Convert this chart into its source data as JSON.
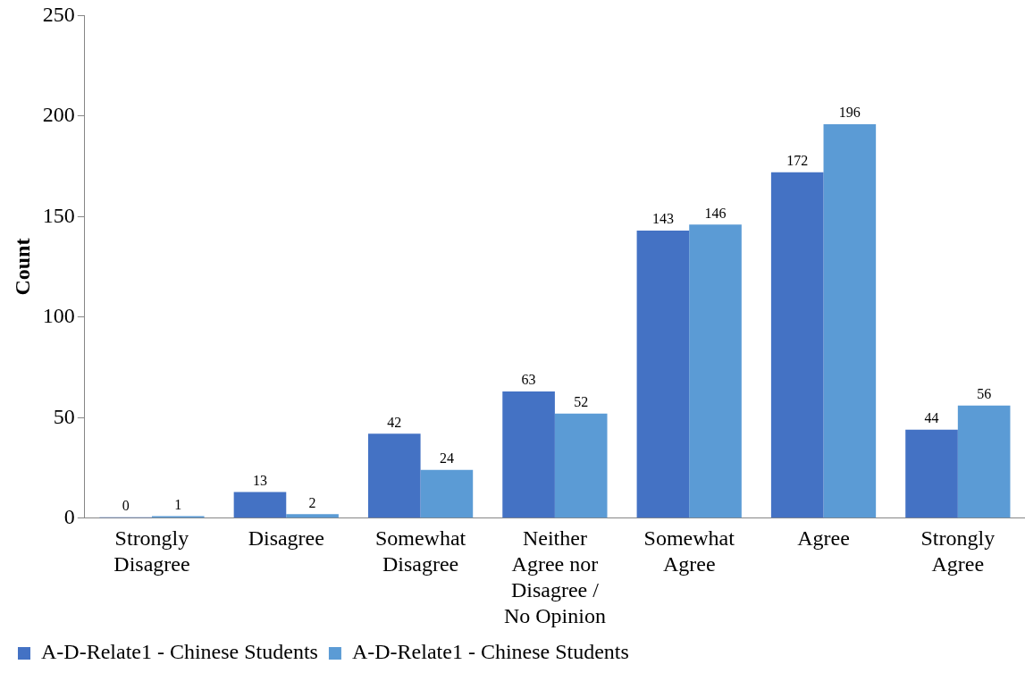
{
  "chart_data": {
    "type": "bar",
    "ylabel": "Count",
    "categories": [
      "Strongly Disagree",
      "Disagree",
      "Somewhat Disagree",
      "Neither Agree nor Disagree / No Opinion",
      "Somewhat Agree",
      "Agree",
      "Strongly Agree"
    ],
    "series": [
      {
        "name": "A-D-Relate1 - Chinese Students",
        "color": "#4472c4",
        "values": [
          0,
          13,
          42,
          63,
          143,
          172,
          44
        ]
      },
      {
        "name": "A-D-Relate1 - Chinese Students",
        "color": "#5b9bd5",
        "values": [
          1,
          2,
          24,
          52,
          146,
          196,
          56
        ]
      }
    ],
    "ylim": [
      0,
      250
    ],
    "yticks": [
      0,
      50,
      100,
      150,
      200,
      250
    ],
    "grid": false,
    "legend": "bottom",
    "data_labels": true
  }
}
